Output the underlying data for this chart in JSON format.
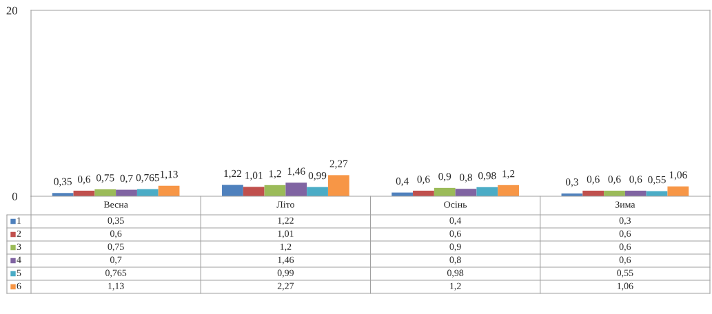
{
  "chart_data": {
    "type": "bar",
    "categories": [
      "Весна",
      "Літо",
      "Осінь",
      "Зима"
    ],
    "ylim": [
      0,
      20
    ],
    "yticks": [
      0,
      20
    ],
    "grid": false,
    "legend": "bottom",
    "series": [
      {
        "name": "1",
        "color": "#4f81bd",
        "values": [
          0.35,
          1.22,
          0.4,
          0.3
        ],
        "value_labels": [
          "0,35",
          "1,22",
          "0,4",
          "0,3"
        ]
      },
      {
        "name": "2",
        "color": "#c0504d",
        "values": [
          0.6,
          1.01,
          0.6,
          0.6
        ],
        "value_labels": [
          "0,6",
          "1,01",
          "0,6",
          "0,6"
        ]
      },
      {
        "name": "3",
        "color": "#9bbb59",
        "values": [
          0.75,
          1.2,
          0.9,
          0.6
        ],
        "value_labels": [
          "0,75",
          "1,2",
          "0,9",
          "0,6"
        ]
      },
      {
        "name": "4",
        "color": "#8064a2",
        "values": [
          0.7,
          1.46,
          0.8,
          0.6
        ],
        "value_labels": [
          "0,7",
          "1,46",
          "0,8",
          "0,6"
        ]
      },
      {
        "name": "5",
        "color": "#4bacc6",
        "values": [
          0.765,
          0.99,
          0.98,
          0.55
        ],
        "value_labels": [
          "0,765",
          "0,99",
          "0,98",
          "0,55"
        ]
      },
      {
        "name": "6",
        "color": "#f79646",
        "values": [
          1.13,
          2.27,
          1.2,
          1.06
        ],
        "value_labels": [
          "1,13",
          "2,27",
          "1,2",
          "1,06"
        ]
      }
    ]
  }
}
